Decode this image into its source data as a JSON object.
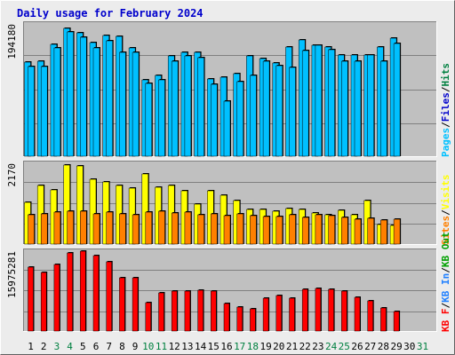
{
  "chart_data": {
    "type": "bar",
    "title": "Daily usage for February 2024",
    "days": [
      "1",
      "2",
      "3",
      "4",
      "5",
      "6",
      "7",
      "8",
      "9",
      "10",
      "11",
      "12",
      "13",
      "14",
      "15",
      "16",
      "17",
      "18",
      "19",
      "20",
      "21",
      "22",
      "23",
      "24",
      "25",
      "26",
      "27",
      "28",
      "29",
      "30",
      "31"
    ],
    "weekend_days": [
      "3",
      "4",
      "10",
      "11",
      "17",
      "18",
      "24",
      "25",
      "31"
    ],
    "colors": {
      "background": "#ececec",
      "plot_bg": "#c0c0c0",
      "grid": "#808080",
      "title": "#0000cc",
      "pages": "#00c0ff",
      "files": "#00c0ff",
      "hits": "#008040",
      "visits": "#ffff00",
      "sites": "#ff8000",
      "kbf": "#ff0000",
      "kbin": "#2080ff",
      "kbout": "#00a000",
      "weekend_label": "#008040",
      "weekday_label": "#000000"
    },
    "panels": [
      {
        "id": "hits",
        "ymax_label": "194180",
        "ymax": 194180,
        "legend": [
          {
            "label": "Pages",
            "color": "#00c0ff"
          },
          {
            "label": "Files",
            "color": "#0000cc"
          },
          {
            "label": "Hits",
            "color": "#008040"
          }
        ],
        "series": [
          {
            "name": "Hits",
            "color": "#00c0ff",
            "values": [
              136000,
              137000,
              162000,
              185000,
              179000,
              164000,
              175000,
              173000,
              157000,
              110000,
              117000,
              145000,
              151000,
              150000,
              112000,
              114000,
              119000,
              145000,
              141000,
              135000,
              158000,
              169000,
              161000,
              158000,
              146000,
              146000,
              147000,
              158000,
              171000
            ]
          },
          {
            "name": "Files",
            "color": "#00c0ff",
            "values": [
              130000,
              130000,
              157000,
              180000,
              172000,
              157000,
              167000,
              151000,
              150000,
              105000,
              110000,
              137000,
              145000,
              143000,
              104000,
              80000,
              108000,
              117000,
              137000,
              131000,
              128000,
              153000,
              161000,
              154000,
              138000,
              138000,
              146000,
              138000,
              163000
            ]
          }
        ]
      },
      {
        "id": "visits",
        "ymax_label": "2170",
        "ymax": 2170,
        "legend": [
          {
            "label": "Sites",
            "color": "#ff8000"
          },
          {
            "label": "Visits",
            "color": "#ffff00"
          }
        ],
        "series": [
          {
            "name": "Visits",
            "color": "#ffff00",
            "values": [
              1100,
              1550,
              1420,
              2080,
              2050,
              1710,
              1640,
              1540,
              1480,
              1840,
              1500,
              1550,
              1410,
              1060,
              1400,
              1280,
              1140,
              900,
              900,
              860,
              930,
              910,
              820,
              780,
              880,
              760,
              1150,
              520,
              480
            ]
          },
          {
            "name": "Sites",
            "color": "#ff8000",
            "values": [
              760,
              800,
              830,
              870,
              860,
              800,
              830,
              800,
              770,
              840,
              870,
              820,
              840,
              760,
              800,
              740,
              800,
              750,
              730,
              720,
              760,
              700,
              760,
              740,
              710,
              650,
              680,
              640,
              650
            ]
          }
        ]
      },
      {
        "id": "kbytes",
        "ymax_label": "15975281",
        "ymax": 15975281,
        "legend": [
          {
            "label": "KB F",
            "color": "#ff0000"
          },
          {
            "label": "KB In",
            "color": "#2080ff"
          },
          {
            "label": "KB Out",
            "color": "#00a000"
          }
        ],
        "series": [
          {
            "name": "KB F",
            "color": "#ff0000",
            "values": [
              12500000,
              11400000,
              13000000,
              15200000,
              15600000,
              14800000,
              13500000,
              10500000,
              10400000,
              5500000,
              7500000,
              7800000,
              7800000,
              8000000,
              7800000,
              5300000,
              4700000,
              4400000,
              6400000,
              7000000,
              6400000,
              8200000,
              8300000,
              8200000,
              7800000,
              6600000,
              5900000,
              4600000,
              3800000
            ]
          }
        ]
      }
    ],
    "legend_separator": "/"
  }
}
